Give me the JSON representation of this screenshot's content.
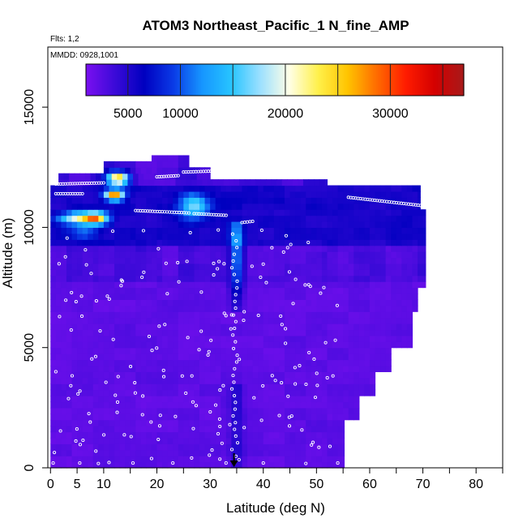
{
  "chart_data": {
    "type": "heatmap",
    "title": "ATOM3 Northeast_Pacific_1 N_fine_AMP",
    "flights_note": "Flts: 1,2",
    "dates_note": "MMDD: 0928,1001",
    "xlabel": "Latitude (deg N)",
    "ylabel": "Altitude (m)",
    "xlim": [
      -0.5,
      85
    ],
    "ylim": [
      0,
      17500
    ],
    "xticks": [
      0,
      5,
      10,
      20,
      30,
      40,
      50,
      60,
      70,
      80
    ],
    "xticks_minor": [
      15,
      25,
      35,
      45,
      55,
      65,
      75,
      85
    ],
    "yticks": [
      0,
      5000,
      10000,
      15000
    ],
    "colorbar": {
      "min": 1000,
      "max": 37000,
      "ticks": [
        5000,
        10000,
        20000,
        30000
      ],
      "colors": [
        "#7a10f0",
        "#3b0ad8",
        "#0000c0",
        "#0a3ae6",
        "#1696ff",
        "#27c4ff",
        "#9ce0ff",
        "#ffffe6",
        "#fff04a",
        "#ffc400",
        "#ff6c00",
        "#ff1c00",
        "#d40000",
        "#a71a1a"
      ]
    },
    "grid_spec": {
      "lat_step": 1,
      "alt_step": 250,
      "values": "background ~1200–3500 with enhanced upper troposphere (8000–12000 m) and a convective column near 34–37 deg N; hotspots near 7–10 deg N at 10500 m, 11–14 deg N at 11400 m and 12000 m"
    },
    "flight_marker_lat": 34.5,
    "legend_placement": "top"
  }
}
